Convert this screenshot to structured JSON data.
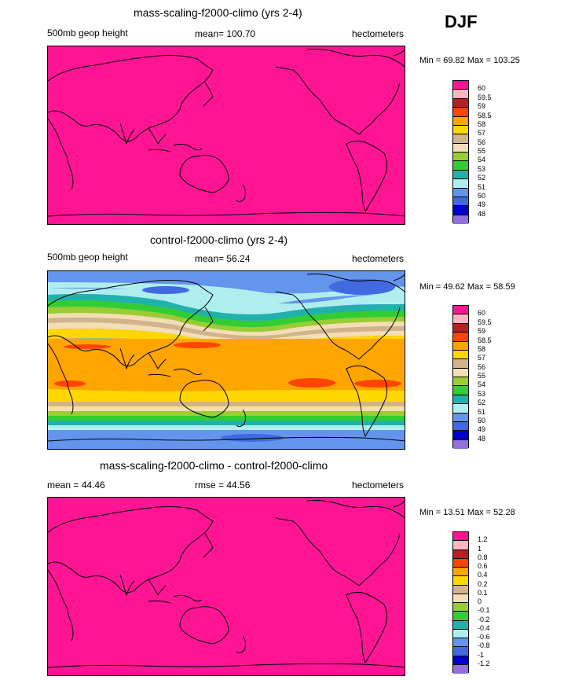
{
  "season": "DJF",
  "palette": {
    "60": "#ff1493",
    "59.5": "#ffb6c1",
    "59": "#b22222",
    "58.5": "#ff4500",
    "58": "#ffa500",
    "57": "#ffd700",
    "56": "#d2b48c",
    "55": "#f5deb3",
    "54": "#9acd32",
    "53": "#32cd32",
    "52": "#20b2aa",
    "51": "#afeeee",
    "50": "#6495ed",
    "49": "#4169e1",
    "48": "#0000cd",
    "low": "#9370db"
  },
  "panels": [
    {
      "title": "mass-scaling-f2000-climo (yrs 2-4)",
      "left_label": "500mb geop height",
      "stat_label": "mean= 100.70",
      "units": "hectometers",
      "minmax": "Min =  69.82 Max = 103.25",
      "legend_labels": [
        "60",
        "59.5",
        "59",
        "58.5",
        "58",
        "57",
        "56",
        "55",
        "54",
        "53",
        "52",
        "51",
        "50",
        "49",
        "48"
      ],
      "legend_colors": [
        "#ff1493",
        "#ffb6c1",
        "#b22222",
        "#ff4500",
        "#ffa500",
        "#ffd700",
        "#d2b48c",
        "#f5deb3",
        "#9acd32",
        "#32cd32",
        "#20b2aa",
        "#afeeee",
        "#6495ed",
        "#4169e1",
        "#0000cd",
        "#9370db"
      ]
    },
    {
      "title": "control-f2000-climo (yrs 2-4)",
      "left_label": "500mb geop height",
      "stat_label": "mean=  56.24",
      "units": "hectometers",
      "minmax": "Min =  49.62 Max =  58.59",
      "legend_labels": [
        "60",
        "59.5",
        "59",
        "58.5",
        "58",
        "57",
        "56",
        "55",
        "54",
        "53",
        "52",
        "51",
        "50",
        "49",
        "48"
      ],
      "legend_colors": [
        "#ff1493",
        "#ffb6c1",
        "#b22222",
        "#ff4500",
        "#ffa500",
        "#ffd700",
        "#d2b48c",
        "#f5deb3",
        "#9acd32",
        "#32cd32",
        "#20b2aa",
        "#afeeee",
        "#6495ed",
        "#4169e1",
        "#0000cd",
        "#9370db"
      ]
    },
    {
      "title": "mass-scaling-f2000-climo - control-f2000-climo",
      "left_label": "mean =  44.46",
      "stat_label": "rmse =  44.56",
      "units": "hectometers",
      "minmax": "Min =  13.51 Max =  52.28",
      "legend_labels": [
        "1.2",
        "1",
        "0.8",
        "0.6",
        "0.4",
        "0.2",
        "0.1",
        "0",
        "-0.1",
        "-0.2",
        "-0.4",
        "-0.6",
        "-0.8",
        "-1",
        "-1.2"
      ],
      "legend_colors": [
        "#ff1493",
        "#ffb6c1",
        "#b22222",
        "#ff4500",
        "#ffa500",
        "#ffd700",
        "#d2b48c",
        "#f5deb3",
        "#9acd32",
        "#32cd32",
        "#20b2aa",
        "#afeeee",
        "#6495ed",
        "#4169e1",
        "#0000cd",
        "#9370db"
      ]
    }
  ]
}
